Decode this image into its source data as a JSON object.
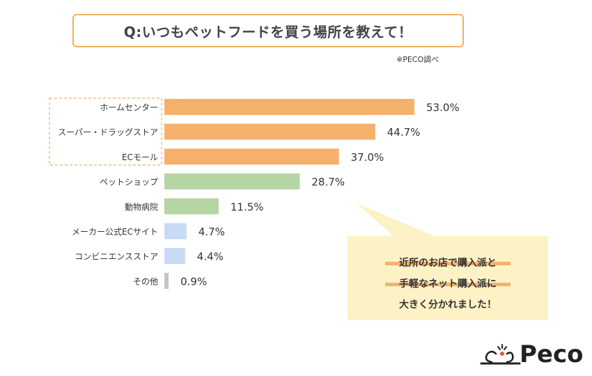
{
  "header": {
    "title": "Q:いつもペットフードを買う場所を教えて！",
    "source_note": "※PECO調べ"
  },
  "chart_data": {
    "type": "bar",
    "orientation": "horizontal",
    "title": "Q:いつもペットフードを買う場所を教えて！",
    "categories": [
      "ホームセンター",
      "スーパー・ドラッグストア",
      "ECモール",
      "ペットショップ",
      "動物病院",
      "メーカー公式ECサイト",
      "コンビニエンスストア",
      "その他"
    ],
    "values": [
      53.0,
      44.7,
      37.0,
      28.7,
      11.5,
      4.7,
      4.4,
      0.9
    ],
    "value_labels": [
      "53.0%",
      "44.7%",
      "37.0%",
      "28.7%",
      "11.5%",
      "4.7%",
      "4.4%",
      "0.9%"
    ],
    "unit": "%",
    "xlim": [
      0,
      60
    ],
    "grid": false,
    "highlighted_categories": [
      "ホームセンター",
      "スーパー・ドラッグストア",
      "ECモール"
    ],
    "colors": [
      "#f5b06b",
      "#f5b06b",
      "#f5b06b",
      "#b5d6a4",
      "#b5d6a4",
      "#c8daf5",
      "#c8daf5",
      "#c4c4c4"
    ]
  },
  "callout": {
    "lines": [
      "近所のお店で購入派と",
      "手軽なネット購入派に",
      "大きく分かれました！"
    ],
    "background": "#fdf2c6",
    "underline_color": "#f5b06b"
  },
  "brand": {
    "name": "Peco",
    "color": "#222222",
    "accent": "#e8553a"
  }
}
